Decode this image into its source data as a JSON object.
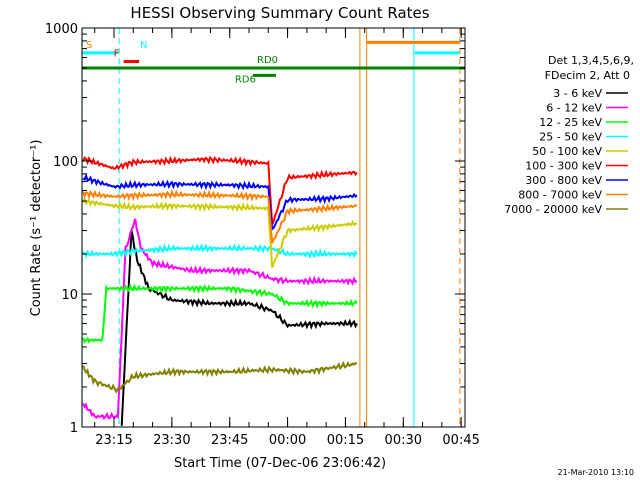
{
  "chart_data": {
    "type": "line",
    "title": "HESSI Observing Summary Count Rates",
    "xlabel": "Start Time (07-Dec-06 23:06:42)",
    "ylabel": "Count Rate (s⁻¹ detector⁻¹)",
    "yscale": "log",
    "ylim": [
      1,
      1000
    ],
    "xlim": [
      "23:06:42",
      "00:46:00"
    ],
    "x_tick_labels": [
      "23:15",
      "23:30",
      "23:45",
      "00:00",
      "00:15",
      "00:30",
      "00:45"
    ],
    "y_tick_labels": [
      "1",
      "10",
      "100",
      "1000"
    ],
    "legend_header": [
      "Det 1,3,4,5,6,9,",
      "FDecim 2, Att 0"
    ],
    "series": [
      {
        "name": "3 - 6 keV",
        "color": "#000000",
        "x": [
          "23:17:00",
          "23:19:30",
          "23:21:00",
          "23:24:00",
          "23:30:00",
          "23:40:00",
          "23:50:00",
          "23:56:00",
          "00:00:00",
          "00:10:00",
          "00:18:00"
        ],
        "y": [
          1.0,
          30,
          18,
          11,
          9,
          8.5,
          8.5,
          7.5,
          5.8,
          6.0,
          6.0
        ]
      },
      {
        "name": "6 - 12 keV",
        "color": "#ff00ff",
        "x": [
          "23:07:00",
          "23:10:00",
          "23:16:00",
          "23:18:00",
          "23:20:30",
          "23:22:00",
          "23:25:00",
          "23:35:00",
          "23:50:00",
          "23:56:00",
          "00:00:00",
          "00:10:00",
          "00:18:00"
        ],
        "y": [
          1.5,
          1.2,
          1.2,
          22,
          36,
          22,
          17,
          15,
          15,
          13,
          12.5,
          12.5,
          12.5
        ]
      },
      {
        "name": "12 - 25 keV",
        "color": "#00ff00",
        "x": [
          "23:07:00",
          "23:12:00",
          "23:13:00",
          "23:18:00",
          "23:30:00",
          "23:45:00",
          "23:56:00",
          "00:00:00",
          "00:10:00",
          "00:18:00"
        ],
        "y": [
          4.5,
          4.5,
          11,
          11,
          11,
          11,
          10,
          8.5,
          8.5,
          8.5
        ]
      },
      {
        "name": "25 - 50 keV",
        "color": "#00ffff",
        "x": [
          "23:07:00",
          "23:15:00",
          "23:20:00",
          "23:30:00",
          "23:45:00",
          "23:56:00",
          "00:00:00",
          "00:10:00",
          "00:18:00"
        ],
        "y": [
          20,
          20,
          21,
          22,
          22,
          22,
          20,
          20,
          20
        ]
      },
      {
        "name": "50 - 100 keV",
        "color": "#cccc00",
        "x": [
          "23:07:00",
          "23:15:00",
          "23:20:00",
          "23:30:00",
          "23:45:00",
          "23:55:00",
          "23:56:00",
          "00:00:00",
          "00:10:00",
          "00:18:00"
        ],
        "y": [
          50,
          46,
          45,
          46,
          45,
          44,
          16,
          30,
          32,
          34
        ]
      },
      {
        "name": "100 - 300 keV",
        "color": "#ff0000",
        "x": [
          "23:07:00",
          "23:15:00",
          "23:20:00",
          "23:30:00",
          "23:38:00",
          "23:45:00",
          "23:55:00",
          "23:56:00",
          "00:00:00",
          "00:10:00",
          "00:18:00"
        ],
        "y": [
          104,
          88,
          98,
          100,
          103,
          101,
          96,
          33,
          75,
          79,
          82
        ]
      },
      {
        "name": "300 - 800 keV",
        "color": "#0000ff",
        "x": [
          "23:07:00",
          "23:15:00",
          "23:20:00",
          "23:30:00",
          "23:45:00",
          "23:55:00",
          "23:56:00",
          "00:00:00",
          "00:10:00",
          "00:18:00"
        ],
        "y": [
          75,
          64,
          66,
          67,
          66,
          64,
          30,
          51,
          52,
          55
        ]
      },
      {
        "name": "800 - 7000 keV",
        "color": "#ff8000",
        "x": [
          "23:07:00",
          "23:15:00",
          "23:20:00",
          "23:30:00",
          "23:45:00",
          "23:55:00",
          "23:56:00",
          "00:00:00",
          "00:10:00",
          "00:18:00"
        ],
        "y": [
          57,
          54,
          55,
          56,
          55,
          54,
          24,
          42,
          44,
          46
        ]
      },
      {
        "name": "7000 - 20000 keV",
        "color": "#808000",
        "x": [
          "23:07:00",
          "23:10:00",
          "23:16:00",
          "23:20:00",
          "23:30:00",
          "23:45:00",
          "23:56:00",
          "00:05:00",
          "00:18:00"
        ],
        "y": [
          2.8,
          2.2,
          1.9,
          2.4,
          2.6,
          2.6,
          2.7,
          2.6,
          3.0
        ]
      }
    ],
    "state_bars": [
      {
        "label": "S",
        "color": "#ff8000",
        "x_start": "23:06:42",
        "x_end": "23:16:00",
        "y": 650
      },
      {
        "label": "N",
        "color": "#00ffff",
        "x_start": "23:06:42",
        "x_end": "23:16:00",
        "y": 650
      },
      {
        "label": "F",
        "color": "#ff0000",
        "x_start": "23:17:30",
        "x_end": "23:21:30",
        "y": 560
      },
      {
        "label": "RD0",
        "color": "#008000",
        "x_start": "23:06:42",
        "x_end": "00:46:00",
        "y": 500
      },
      {
        "label": "RD6",
        "color": "#008000",
        "x_start": "23:51:00",
        "x_end": "23:57:00",
        "y": 440
      },
      {
        "label": "",
        "color": "#ff8000",
        "x_start": "00:20:30",
        "x_end": "00:44:30",
        "y": 780
      },
      {
        "label": "",
        "color": "#00ffff",
        "x_start": "00:33:00",
        "x_end": "00:44:30",
        "y": 650
      }
    ],
    "vertical_markers": [
      {
        "x": "23:06:45",
        "color": "#00ffff",
        "style": "dashed"
      },
      {
        "x": "23:16:20",
        "color": "#00ffff",
        "style": "dashed"
      },
      {
        "x": "00:18:45",
        "color": "#ff8000",
        "style": "solid"
      },
      {
        "x": "00:20:30",
        "color": "#ff8000",
        "style": "solid"
      },
      {
        "x": "00:32:45",
        "color": "#00ffff",
        "style": "solid"
      },
      {
        "x": "00:44:40",
        "color": "#ff8000",
        "style": "dashed"
      }
    ],
    "grid": false,
    "legend_position": "right"
  },
  "footer_date": "21-Mar-2010 13:10"
}
